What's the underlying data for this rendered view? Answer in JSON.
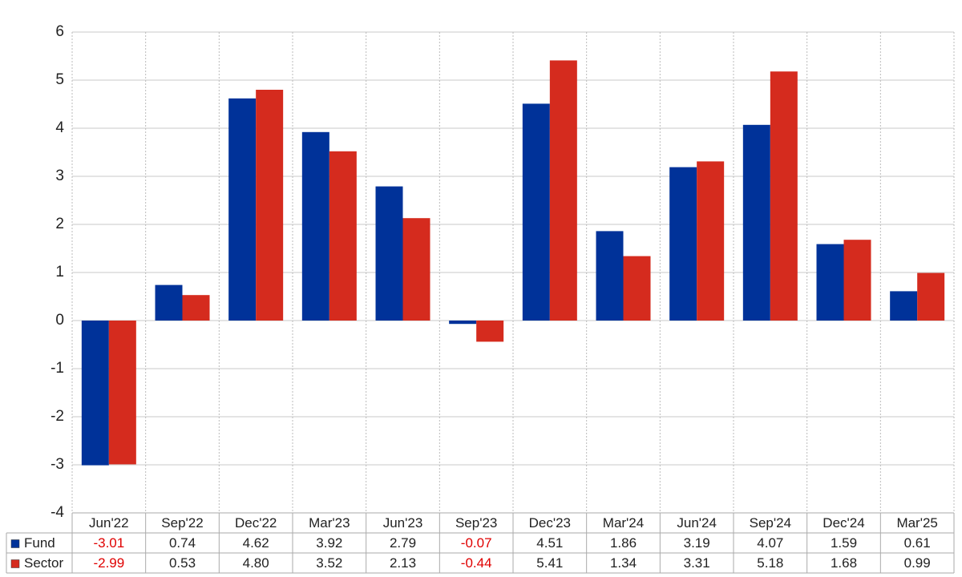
{
  "chart_data": {
    "type": "bar",
    "categories": [
      "Jun'22",
      "Sep'22",
      "Dec'22",
      "Mar'23",
      "Jun'23",
      "Sep'23",
      "Dec'23",
      "Mar'24",
      "Jun'24",
      "Sep'24",
      "Dec'24",
      "Mar'25"
    ],
    "series": [
      {
        "name": "Fund",
        "color": "#003299",
        "values": [
          -3.01,
          0.74,
          4.62,
          3.92,
          2.79,
          -0.07,
          4.51,
          1.86,
          3.19,
          4.07,
          1.59,
          0.61
        ],
        "value_labels": [
          "-3.01",
          "0.74",
          "4.62",
          "3.92",
          "2.79",
          "-0.07",
          "4.51",
          "1.86",
          "3.19",
          "4.07",
          "1.59",
          "0.61"
        ]
      },
      {
        "name": "Sector",
        "color": "#d52b1e",
        "values": [
          -2.99,
          0.53,
          4.8,
          3.52,
          2.13,
          -0.44,
          5.41,
          1.34,
          3.31,
          5.18,
          1.68,
          0.99
        ],
        "value_labels": [
          "-2.99",
          "0.53",
          "4.80",
          "3.52",
          "2.13",
          "-0.44",
          "5.41",
          "1.34",
          "3.31",
          "5.18",
          "1.68",
          "0.99"
        ]
      }
    ],
    "ylim": [
      -4,
      6
    ],
    "yticks": [
      -4,
      -3,
      -2,
      -1,
      0,
      1,
      2,
      3,
      4,
      5,
      6
    ],
    "grid": true
  }
}
